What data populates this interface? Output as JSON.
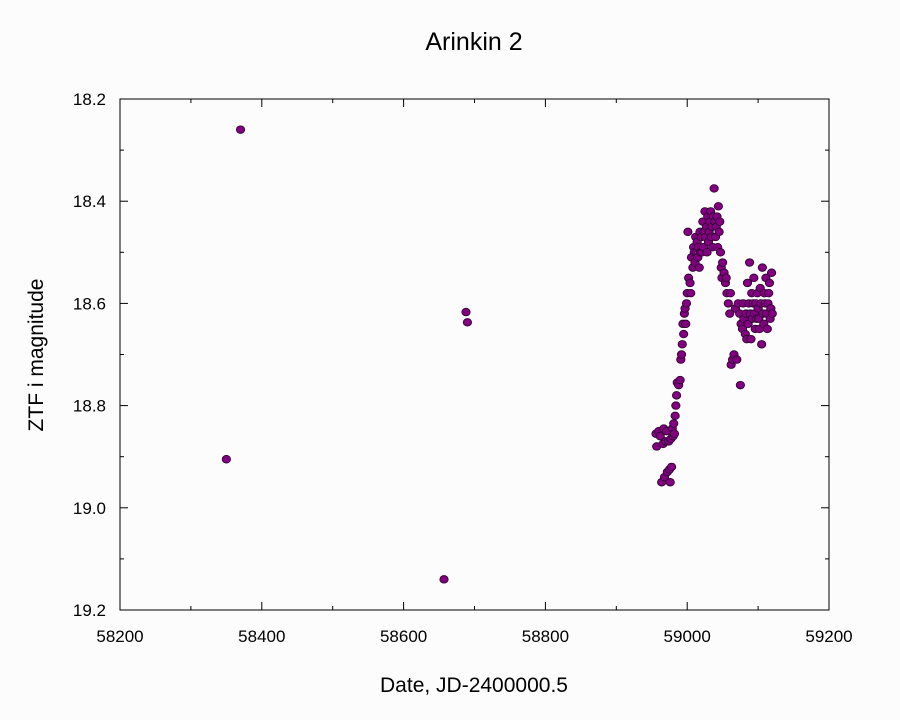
{
  "chart_data": {
    "type": "scatter",
    "title": "Arinkin 2",
    "xlabel": "Date, JD-2400000.5",
    "ylabel": "ZTF i magnitude",
    "xlim": [
      58200,
      59200
    ],
    "ylim": [
      18.2,
      19.2
    ],
    "y_inverted": true,
    "grid": false,
    "x_ticks": [
      "58200",
      "58400",
      "58600",
      "58800",
      "59000",
      "59200"
    ],
    "y_ticks": [
      "18.2",
      "18.4",
      "18.6",
      "18.8",
      "19.0",
      "19.2"
    ],
    "marker_color": "#800080",
    "series": [
      {
        "points": [
          [
            58350,
            18.905
          ],
          [
            58370,
            18.26
          ],
          [
            58657,
            19.14
          ],
          [
            58688,
            18.617
          ],
          [
            58690,
            18.637
          ],
          [
            58956,
            18.855
          ],
          [
            58957,
            18.88
          ],
          [
            58960,
            18.85
          ],
          [
            58962,
            18.86
          ],
          [
            58964,
            18.95
          ],
          [
            58966,
            18.875
          ],
          [
            58967,
            18.845
          ],
          [
            58968,
            18.94
          ],
          [
            58970,
            18.87
          ],
          [
            58971,
            18.85
          ],
          [
            58972,
            18.93
          ],
          [
            58974,
            18.87
          ],
          [
            58975,
            18.925
          ],
          [
            58976,
            18.95
          ],
          [
            58977,
            18.865
          ],
          [
            58978,
            18.92
          ],
          [
            58979,
            18.845
          ],
          [
            58980,
            18.86
          ],
          [
            58981,
            18.835
          ],
          [
            58982,
            18.855
          ],
          [
            58983,
            18.82
          ],
          [
            58984,
            18.8
          ],
          [
            58985,
            18.78
          ],
          [
            58986,
            18.755
          ],
          [
            58988,
            18.76
          ],
          [
            58990,
            18.75
          ],
          [
            58991,
            18.71
          ],
          [
            58992,
            18.7
          ],
          [
            58993,
            18.68
          ],
          [
            58994,
            18.64
          ],
          [
            58995,
            18.66
          ],
          [
            58996,
            18.62
          ],
          [
            58997,
            18.61
          ],
          [
            58998,
            18.64
          ],
          [
            58999,
            18.6
          ],
          [
            59000,
            18.58
          ],
          [
            59001,
            18.46
          ],
          [
            59002,
            18.55
          ],
          [
            59004,
            18.56
          ],
          [
            59005,
            18.58
          ],
          [
            59006,
            18.51
          ],
          [
            59008,
            18.53
          ],
          [
            59009,
            18.49
          ],
          [
            59010,
            18.5
          ],
          [
            59011,
            18.52
          ],
          [
            59012,
            18.47
          ],
          [
            59013,
            18.5
          ],
          [
            59014,
            18.48
          ],
          [
            59015,
            18.51
          ],
          [
            59016,
            18.49
          ],
          [
            59017,
            18.53
          ],
          [
            59018,
            18.46
          ],
          [
            59019,
            18.5
          ],
          [
            59020,
            18.47
          ],
          [
            59021,
            18.5
          ],
          [
            59022,
            18.44
          ],
          [
            59023,
            18.49
          ],
          [
            59024,
            18.46
          ],
          [
            59025,
            18.42
          ],
          [
            59026,
            18.47
          ],
          [
            59027,
            18.45
          ],
          [
            59028,
            18.5
          ],
          [
            59029,
            18.43
          ],
          [
            59030,
            18.48
          ],
          [
            59031,
            18.46
          ],
          [
            59032,
            18.44
          ],
          [
            59033,
            18.42
          ],
          [
            59034,
            18.47
          ],
          [
            59035,
            18.45
          ],
          [
            59036,
            18.49
          ],
          [
            59037,
            18.43
          ],
          [
            59038,
            18.375
          ],
          [
            59039,
            18.44
          ],
          [
            59040,
            18.47
          ],
          [
            59041,
            18.45
          ],
          [
            59042,
            18.43
          ],
          [
            59043,
            18.49
          ],
          [
            59044,
            18.41
          ],
          [
            59045,
            18.46
          ],
          [
            59046,
            18.44
          ],
          [
            59047,
            18.5
          ],
          [
            59048,
            18.53
          ],
          [
            59049,
            18.55
          ],
          [
            59050,
            18.52
          ],
          [
            59052,
            18.54
          ],
          [
            59054,
            18.56
          ],
          [
            59055,
            18.55
          ],
          [
            59056,
            18.58
          ],
          [
            59058,
            18.6
          ],
          [
            59060,
            18.62
          ],
          [
            59061,
            18.58
          ],
          [
            59062,
            18.72
          ],
          [
            59064,
            18.71
          ],
          [
            59066,
            18.7
          ],
          [
            59068,
            18.61
          ],
          [
            59070,
            18.71
          ],
          [
            59072,
            18.6
          ],
          [
            59074,
            18.62
          ],
          [
            59075,
            18.76
          ],
          [
            59076,
            18.64
          ],
          [
            59078,
            18.65
          ],
          [
            59079,
            18.6
          ],
          [
            59080,
            18.63
          ],
          [
            59082,
            18.66
          ],
          [
            59083,
            18.62
          ],
          [
            59084,
            18.67
          ],
          [
            59085,
            18.56
          ],
          [
            59086,
            18.64
          ],
          [
            59087,
            18.6
          ],
          [
            59088,
            18.52
          ],
          [
            59089,
            18.62
          ],
          [
            59090,
            18.67
          ],
          [
            59091,
            18.58
          ],
          [
            59092,
            18.63
          ],
          [
            59093,
            18.6
          ],
          [
            59094,
            18.55
          ],
          [
            59095,
            18.62
          ],
          [
            59096,
            18.65
          ],
          [
            59097,
            18.6
          ],
          [
            59098,
            18.63
          ],
          [
            59099,
            18.58
          ],
          [
            59100,
            18.61
          ],
          [
            59101,
            18.63
          ],
          [
            59102,
            18.65
          ],
          [
            59103,
            18.57
          ],
          [
            59104,
            18.6
          ],
          [
            59105,
            18.68
          ],
          [
            59106,
            18.53
          ],
          [
            59107,
            18.62
          ],
          [
            59108,
            18.64
          ],
          [
            59109,
            18.58
          ],
          [
            59110,
            18.6
          ],
          [
            59111,
            18.55
          ],
          [
            59112,
            18.62
          ],
          [
            59113,
            18.65
          ],
          [
            59114,
            18.6
          ],
          [
            59115,
            18.58
          ],
          [
            59116,
            18.56
          ],
          [
            59117,
            18.63
          ],
          [
            59118,
            18.61
          ],
          [
            59119,
            18.54
          ],
          [
            59120,
            18.62
          ]
        ]
      }
    ]
  }
}
